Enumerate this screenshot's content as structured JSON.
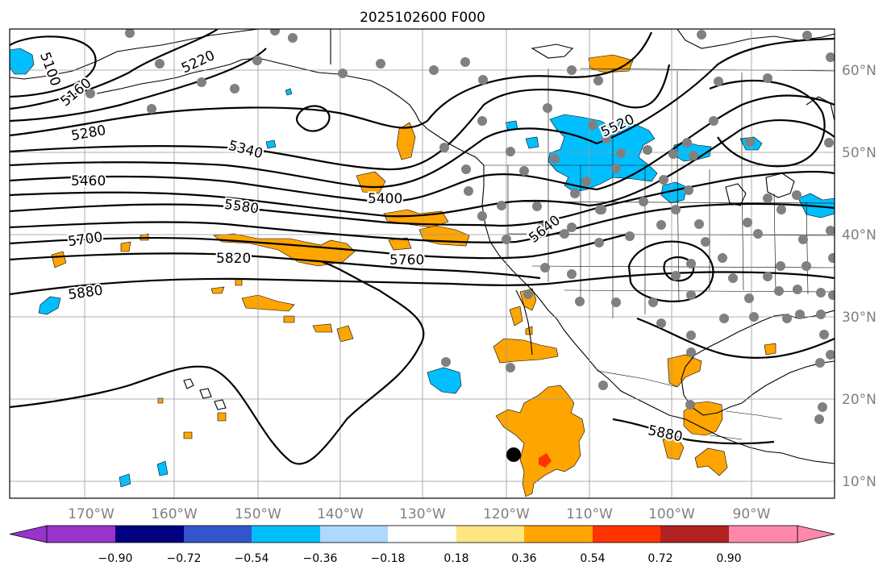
{
  "title": "2025102600 F000",
  "map": {
    "lon_ticks": [
      "170°W",
      "160°W",
      "150°W",
      "140°W",
      "130°W",
      "120°W",
      "110°W",
      "100°W",
      "90°W"
    ],
    "lat_ticks": [
      "60°N",
      "50°N",
      "40°N",
      "30°N",
      "20°N",
      "10°N"
    ],
    "contour_labels": [
      "5100",
      "5160",
      "5220",
      "5280",
      "5340",
      "5400",
      "5460",
      "5520",
      "5580",
      "5640",
      "5700",
      "5760",
      "5820",
      "5880",
      "5880"
    ],
    "contour_color": "#000000",
    "positive_anomaly_color": "#ffa500",
    "strong_positive_color": "#ff3300",
    "negative_anomaly_color": "#00bfff",
    "station_marker_color": "#808080",
    "center_marker_color": "#000000"
  },
  "colorbar": {
    "ticks": [
      "−0.90",
      "−0.72",
      "−0.54",
      "−0.36",
      "−0.18",
      "0.18",
      "0.36",
      "0.54",
      "0.72",
      "0.90"
    ],
    "colors": [
      "#9933cc",
      "#000080",
      "#3355cc",
      "#00bfff",
      "#add8ff",
      "#ffffff",
      "#ffe680",
      "#ffa500",
      "#ff3300",
      "#b22222",
      "#ff88aa"
    ]
  }
}
